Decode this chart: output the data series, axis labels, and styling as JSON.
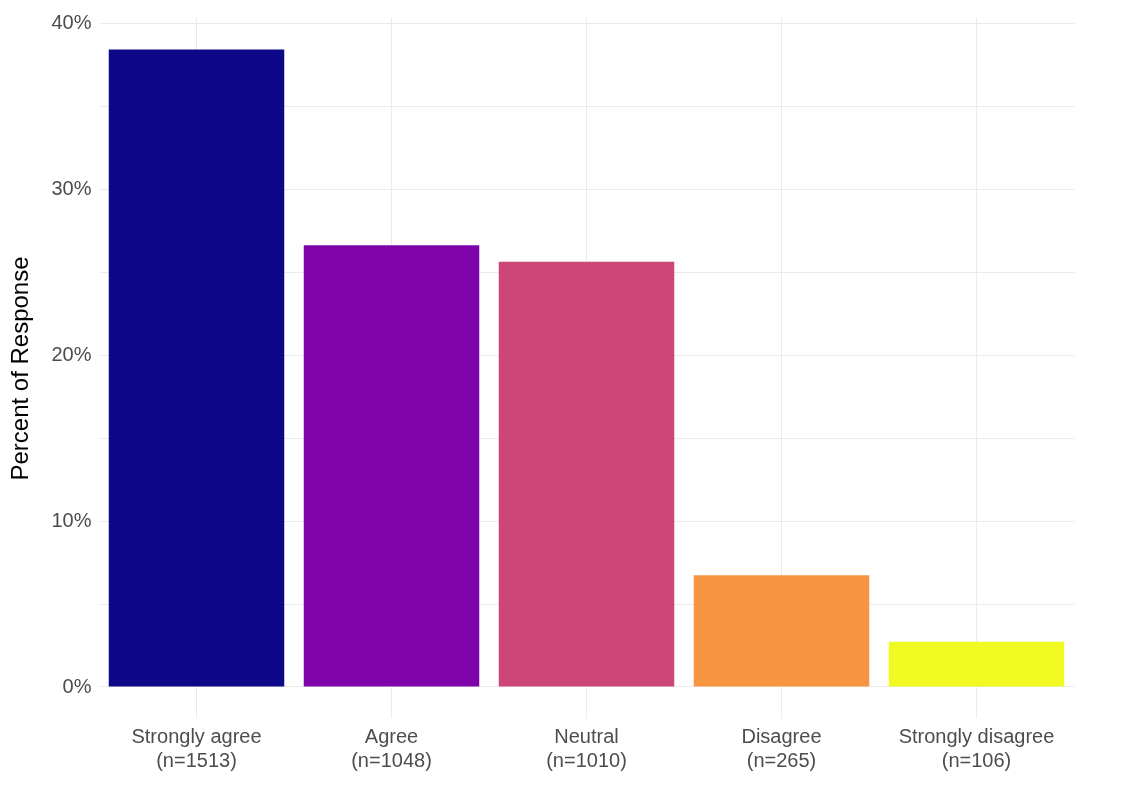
{
  "chart_data": {
    "type": "bar",
    "ylabel": "Percent of Response",
    "categories": [
      "Strongly agree\n(n=1513)",
      "Agree\n(n=1048)",
      "Neutral\n(n=1010)",
      "Disagree\n(n=265)",
      "Strongly disagree\n(n=106)"
    ],
    "values": [
      38.4,
      26.6,
      25.6,
      6.7,
      2.7
    ],
    "colors": [
      "#0d0887",
      "#7e03a8",
      "#cc4778",
      "#f89540",
      "#f0f921"
    ],
    "ylim": [
      -1.9,
      40.3
    ],
    "yticks": [
      {
        "value": 0,
        "label": "0%"
      },
      {
        "value": 5,
        "label": null
      },
      {
        "value": 10,
        "label": "10%"
      },
      {
        "value": 15,
        "label": null
      },
      {
        "value": 20,
        "label": "20%"
      },
      {
        "value": 25,
        "label": null
      },
      {
        "value": 30,
        "label": "30%"
      },
      {
        "value": 35,
        "label": null
      },
      {
        "value": 40,
        "label": "40%"
      }
    ],
    "grid": true,
    "legend": false
  }
}
